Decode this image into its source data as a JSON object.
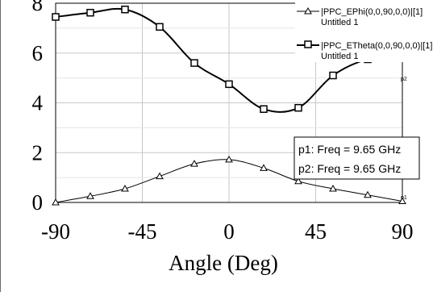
{
  "chart_data": {
    "type": "line",
    "xlabel": "Angle (Deg)",
    "ylabel": "",
    "xlim": [
      -90,
      90
    ],
    "ylim": [
      0,
      8
    ],
    "x_ticks": [
      "-90",
      "-45",
      "0",
      "45",
      "90"
    ],
    "y_ticks": [
      "0",
      "2",
      "4",
      "6",
      "8"
    ],
    "grid": true,
    "legend": "top-right",
    "series": [
      {
        "name": "|PPC_EPhi(0,0,90,0,0)|[1]",
        "subtitle": "Untitled 1",
        "marker": "triangle",
        "color": "#000000",
        "x": [
          -90,
          -72,
          -54,
          -36,
          -18,
          0,
          18,
          36,
          54,
          72,
          90
        ],
        "y": [
          0.0,
          0.25,
          0.55,
          1.05,
          1.55,
          1.72,
          1.38,
          0.85,
          0.55,
          0.3,
          0.05
        ]
      },
      {
        "name": "|PPC_ETheta(0,0,90,0,0)|[1]",
        "subtitle": "Untitled 1",
        "marker": "square",
        "color": "#000000",
        "x": [
          -90,
          -72,
          -54,
          -36,
          -18,
          0,
          18,
          36,
          54,
          72,
          90
        ],
        "y": [
          7.45,
          7.62,
          7.75,
          7.05,
          5.6,
          4.75,
          3.75,
          3.8,
          5.1,
          5.75,
          5.85
        ]
      }
    ],
    "markers_box": [
      "p1: Freq = 9.65 GHz",
      "p2: Freq = 9.65 GHz"
    ],
    "point_tags": [
      "p2",
      "p1"
    ]
  }
}
